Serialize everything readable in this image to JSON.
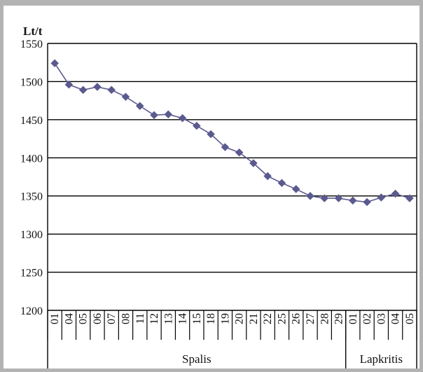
{
  "chart_data": {
    "type": "line",
    "ylabel": "Lt/t",
    "ylim": [
      1200,
      1550
    ],
    "yticks": [
      1200,
      1250,
      1300,
      1350,
      1400,
      1450,
      1500,
      1550
    ],
    "grid": true,
    "groups": [
      {
        "label": "Spalis",
        "categories": [
          "01",
          "04",
          "05",
          "06",
          "07",
          "08",
          "11",
          "12",
          "13",
          "14",
          "15",
          "18",
          "19",
          "20",
          "21",
          "22",
          "25",
          "26",
          "27",
          "28",
          "29"
        ]
      },
      {
        "label": "Lapkritis",
        "categories": [
          "01",
          "02",
          "03",
          "04",
          "05"
        ]
      }
    ],
    "series": [
      {
        "color": "#5b5a8f",
        "marker": "diamond",
        "values": [
          1524,
          1496,
          1489,
          1493,
          1489,
          1480,
          1468,
          1456,
          1457,
          1452,
          1442,
          1431,
          1414,
          1407,
          1393,
          1376,
          1367,
          1359,
          1350,
          1347,
          1347,
          1344,
          1342,
          1348,
          1353,
          1347
        ]
      }
    ]
  }
}
